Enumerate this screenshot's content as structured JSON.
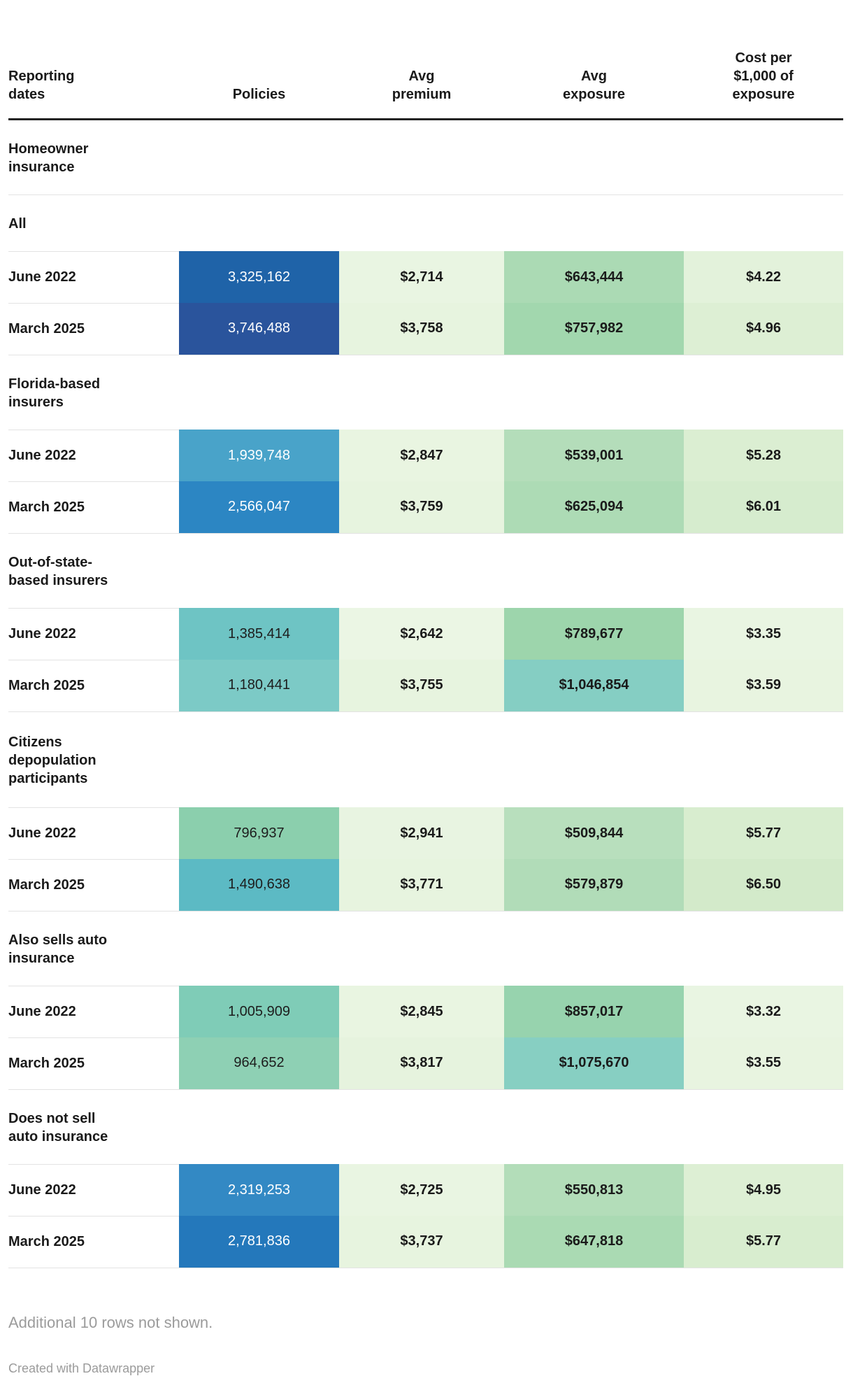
{
  "header": {
    "columns": {
      "label": "Reporting\ndates",
      "policies": "Policies",
      "premium": "Avg\npremium",
      "exposure": "Avg\nexposure",
      "cost": "Cost per\n$1,000 of\nexposure"
    }
  },
  "table": {
    "sections": [
      {
        "title": "Homeowner\ninsurance",
        "rows": []
      },
      {
        "title": "All",
        "rows": [
          {
            "label": "June 2022",
            "policies": {
              "v": "3,325,162",
              "bg": "#1f63a8",
              "fg": "#ffffff"
            },
            "premium": {
              "v": "$2,714",
              "bg": "#e9f5e2"
            },
            "exposure": {
              "v": "$643,444",
              "bg": "#abdab4"
            },
            "cost": {
              "v": "$4.22",
              "bg": "#e3f2db"
            }
          },
          {
            "label": "March 2025",
            "policies": {
              "v": "3,746,488",
              "bg": "#2a549c",
              "fg": "#ffffff"
            },
            "premium": {
              "v": "$3,758",
              "bg": "#e7f4df"
            },
            "exposure": {
              "v": "$757,982",
              "bg": "#a2d7ae"
            },
            "cost": {
              "v": "$4.96",
              "bg": "#ddefd4"
            }
          }
        ]
      },
      {
        "title": "Florida-based\ninsurers",
        "rows": [
          {
            "label": "June 2022",
            "policies": {
              "v": "1,939,748",
              "bg": "#49a3c9",
              "fg": "#ffffff"
            },
            "premium": {
              "v": "$2,847",
              "bg": "#e9f5e1"
            },
            "exposure": {
              "v": "$539,001",
              "bg": "#b4ddba"
            },
            "cost": {
              "v": "$5.28",
              "bg": "#dbeed2"
            }
          },
          {
            "label": "March 2025",
            "policies": {
              "v": "2,566,047",
              "bg": "#2c86c3",
              "fg": "#ffffff"
            },
            "premium": {
              "v": "$3,759",
              "bg": "#e7f4df"
            },
            "exposure": {
              "v": "$625,094",
              "bg": "#addbb5"
            },
            "cost": {
              "v": "$6.01",
              "bg": "#d6ecce"
            }
          }
        ]
      },
      {
        "title": "Out-of-state-\nbased insurers",
        "rows": [
          {
            "label": "June 2022",
            "policies": {
              "v": "1,385,414",
              "bg": "#6ec4c4",
              "fg": "#1d1d1d"
            },
            "premium": {
              "v": "$2,642",
              "bg": "#ebf6e4"
            },
            "exposure": {
              "v": "$789,677",
              "bg": "#9dd5ac"
            },
            "cost": {
              "v": "$3.35",
              "bg": "#e9f5e2"
            }
          },
          {
            "label": "March 2025",
            "policies": {
              "v": "1,180,441",
              "bg": "#7ccac6",
              "fg": "#1d1d1d"
            },
            "premium": {
              "v": "$3,755",
              "bg": "#e7f4df"
            },
            "exposure": {
              "v": "$1,046,854",
              "bg": "#85cec3"
            },
            "cost": {
              "v": "$3.59",
              "bg": "#e8f4e0"
            }
          }
        ]
      },
      {
        "title": "Citizens\ndepopulation\nparticipants",
        "rows": [
          {
            "label": "June 2022",
            "policies": {
              "v": "796,937",
              "bg": "#8bcfad",
              "fg": "#1d1d1d"
            },
            "premium": {
              "v": "$2,941",
              "bg": "#e8f4e1"
            },
            "exposure": {
              "v": "$509,844",
              "bg": "#b8dfbd"
            },
            "cost": {
              "v": "$5.77",
              "bg": "#d8edcf"
            }
          },
          {
            "label": "March 2025",
            "policies": {
              "v": "1,490,638",
              "bg": "#5cbac4",
              "fg": "#1d1d1d"
            },
            "premium": {
              "v": "$3,771",
              "bg": "#e7f4df"
            },
            "exposure": {
              "v": "$579,879",
              "bg": "#b1dcb8"
            },
            "cost": {
              "v": "$6.50",
              "bg": "#d3eaca"
            }
          }
        ]
      },
      {
        "title": "Also sells auto\ninsurance",
        "rows": [
          {
            "label": "June 2022",
            "policies": {
              "v": "1,005,909",
              "bg": "#7fccb7",
              "fg": "#1d1d1d"
            },
            "premium": {
              "v": "$2,845",
              "bg": "#e9f5e1"
            },
            "exposure": {
              "v": "$857,017",
              "bg": "#97d3ae"
            },
            "cost": {
              "v": "$3.32",
              "bg": "#e9f5e2"
            }
          },
          {
            "label": "March 2025",
            "policies": {
              "v": "964,652",
              "bg": "#8ed0b4",
              "fg": "#1d1d1d"
            },
            "premium": {
              "v": "$3,817",
              "bg": "#e6f3de"
            },
            "exposure": {
              "v": "$1,075,670",
              "bg": "#87cfc2"
            },
            "cost": {
              "v": "$3.55",
              "bg": "#e8f4e0"
            }
          }
        ]
      },
      {
        "title": "Does not sell\nauto insurance",
        "rows": [
          {
            "label": "June 2022",
            "policies": {
              "v": "2,319,253",
              "bg": "#3389c4",
              "fg": "#ffffff"
            },
            "premium": {
              "v": "$2,725",
              "bg": "#e9f5e2"
            },
            "exposure": {
              "v": "$550,813",
              "bg": "#b3ddb9"
            },
            "cost": {
              "v": "$4.95",
              "bg": "#ddefd4"
            }
          },
          {
            "label": "March 2025",
            "policies": {
              "v": "2,781,836",
              "bg": "#2478bb",
              "fg": "#ffffff"
            },
            "premium": {
              "v": "$3,737",
              "bg": "#e7f4df"
            },
            "exposure": {
              "v": "$647,818",
              "bg": "#aadab3"
            },
            "cost": {
              "v": "$5.77",
              "bg": "#d8edcf"
            }
          }
        ]
      }
    ]
  },
  "footer": {
    "note": "Additional 10 rows not shown.",
    "credit": "Created with Datawrapper"
  },
  "chart_data": {
    "type": "table",
    "columns": [
      "Reporting dates",
      "Policies",
      "Avg premium",
      "Avg exposure",
      "Cost per $1,000 of exposure"
    ],
    "heatmap": true,
    "note": "Additional 10 rows not shown.",
    "sections": [
      {
        "name": "Homeowner insurance",
        "rows": []
      },
      {
        "name": "All",
        "rows": [
          {
            "reporting_date": "June 2022",
            "policies": 3325162,
            "avg_premium": 2714,
            "avg_exposure": 643444,
            "cost_per_1000_exposure": 4.22
          },
          {
            "reporting_date": "March 2025",
            "policies": 3746488,
            "avg_premium": 3758,
            "avg_exposure": 757982,
            "cost_per_1000_exposure": 4.96
          }
        ]
      },
      {
        "name": "Florida-based insurers",
        "rows": [
          {
            "reporting_date": "June 2022",
            "policies": 1939748,
            "avg_premium": 2847,
            "avg_exposure": 539001,
            "cost_per_1000_exposure": 5.28
          },
          {
            "reporting_date": "March 2025",
            "policies": 2566047,
            "avg_premium": 3759,
            "avg_exposure": 625094,
            "cost_per_1000_exposure": 6.01
          }
        ]
      },
      {
        "name": "Out-of-state-based insurers",
        "rows": [
          {
            "reporting_date": "June 2022",
            "policies": 1385414,
            "avg_premium": 2642,
            "avg_exposure": 789677,
            "cost_per_1000_exposure": 3.35
          },
          {
            "reporting_date": "March 2025",
            "policies": 1180441,
            "avg_premium": 3755,
            "avg_exposure": 1046854,
            "cost_per_1000_exposure": 3.59
          }
        ]
      },
      {
        "name": "Citizens depopulation participants",
        "rows": [
          {
            "reporting_date": "June 2022",
            "policies": 796937,
            "avg_premium": 2941,
            "avg_exposure": 509844,
            "cost_per_1000_exposure": 5.77
          },
          {
            "reporting_date": "March 2025",
            "policies": 1490638,
            "avg_premium": 3771,
            "avg_exposure": 579879,
            "cost_per_1000_exposure": 6.5
          }
        ]
      },
      {
        "name": "Also sells auto insurance",
        "rows": [
          {
            "reporting_date": "June 2022",
            "policies": 1005909,
            "avg_premium": 2845,
            "avg_exposure": 857017,
            "cost_per_1000_exposure": 3.32
          },
          {
            "reporting_date": "March 2025",
            "policies": 964652,
            "avg_premium": 3817,
            "avg_exposure": 1075670,
            "cost_per_1000_exposure": 3.55
          }
        ]
      },
      {
        "name": "Does not sell auto insurance",
        "rows": [
          {
            "reporting_date": "June 2022",
            "policies": 2319253,
            "avg_premium": 2725,
            "avg_exposure": 550813,
            "cost_per_1000_exposure": 4.95
          },
          {
            "reporting_date": "March 2025",
            "policies": 2781836,
            "avg_premium": 3737,
            "avg_exposure": 647818,
            "cost_per_1000_exposure": 5.77
          }
        ]
      }
    ]
  }
}
